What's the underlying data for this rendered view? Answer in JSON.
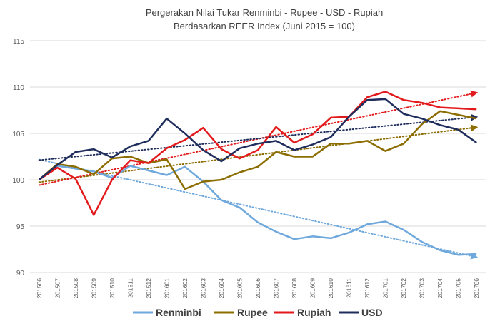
{
  "chart_data": {
    "type": "line",
    "title": "Pergerakan Nilai Tukar Renminbi - Rupee - USD - Rupiah",
    "subtitle": "Berdasarkan  REER Index (Juni 2015 = 100)",
    "categories": [
      "201506",
      "201507",
      "201508",
      "201509",
      "201510",
      "201511",
      "201512",
      "201601",
      "201602",
      "201603",
      "201604",
      "201605",
      "201606",
      "201607",
      "201608",
      "201609",
      "201610",
      "201611",
      "201612",
      "201701",
      "201702",
      "201703",
      "201704",
      "201705",
      "201706"
    ],
    "yticks": [
      "90",
      "95",
      "100",
      "105",
      "110",
      "115"
    ],
    "ylim": [
      90,
      115
    ],
    "grid": true,
    "legend_position": "bottom",
    "trendlines": true,
    "series": [
      {
        "name": "Renminbi",
        "color": "#6fa8dc",
        "values": [
          100,
          101.5,
          101.2,
          100.9,
          100.2,
          101.5,
          101.0,
          100.5,
          101.4,
          99.8,
          97.8,
          97.0,
          95.4,
          94.4,
          93.6,
          93.9,
          93.7,
          94.3,
          95.2,
          95.5,
          94.6,
          93.3,
          92.4,
          91.9,
          92.0
        ]
      },
      {
        "name": "Rupee",
        "color": "#8c6d00",
        "values": [
          100,
          101.7,
          101.4,
          100.6,
          102.3,
          102.5,
          101.8,
          102.2,
          99.0,
          99.8,
          100.0,
          100.8,
          101.4,
          103.0,
          102.5,
          102.5,
          103.9,
          103.9,
          104.2,
          103.1,
          103.9,
          106.0,
          107.4,
          107.0,
          106.6
        ]
      },
      {
        "name": "Rupiah",
        "color": "#e31a1c",
        "values": [
          100,
          101.3,
          100.1,
          96.2,
          100.0,
          102.1,
          101.8,
          103.4,
          104.3,
          105.6,
          103.3,
          102.3,
          103.2,
          105.7,
          104.0,
          104.9,
          106.7,
          106.8,
          108.9,
          109.5,
          108.6,
          108.3,
          107.8,
          107.7,
          107.6
        ]
      },
      {
        "name": "USD",
        "color": "#1f2d5c",
        "values": [
          100,
          101.6,
          103.0,
          103.3,
          102.4,
          103.6,
          104.2,
          106.6,
          105.0,
          103.2,
          102.0,
          103.4,
          103.9,
          104.2,
          103.2,
          103.8,
          104.6,
          106.8,
          108.6,
          108.7,
          107.1,
          106.6,
          105.9,
          105.4,
          104.0
        ]
      }
    ]
  }
}
